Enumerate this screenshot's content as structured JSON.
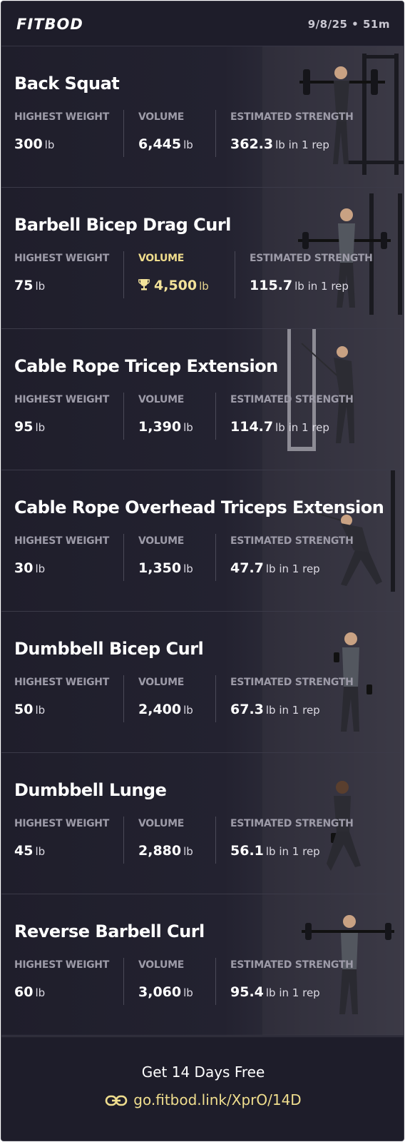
{
  "app": {
    "logo": "FITBOD",
    "meta": "9/8/25 • 51m"
  },
  "labels": {
    "highest_weight": "HIGHEST WEIGHT",
    "volume": "VOLUME",
    "estimated_strength": "ESTIMATED STRENGTH"
  },
  "exercises": [
    {
      "name": "Back Squat",
      "highest_weight": "300",
      "highest_weight_unit": "lb",
      "volume": "6,445",
      "volume_unit": "lb",
      "strength": "362.3",
      "strength_unit": "lb in 1 rep",
      "volume_record": false
    },
    {
      "name": "Barbell Bicep Drag Curl",
      "highest_weight": "75",
      "highest_weight_unit": "lb",
      "volume": "4,500",
      "volume_unit": "lb",
      "strength": "115.7",
      "strength_unit": "lb in 1 rep",
      "volume_record": true
    },
    {
      "name": "Cable Rope Tricep Extension",
      "highest_weight": "95",
      "highest_weight_unit": "lb",
      "volume": "1,390",
      "volume_unit": "lb",
      "strength": "114.7",
      "strength_unit": "lb in 1 rep",
      "volume_record": false
    },
    {
      "name": "Cable Rope Overhead Triceps Extension",
      "highest_weight": "30",
      "highest_weight_unit": "lb",
      "volume": "1,350",
      "volume_unit": "lb",
      "strength": "47.7",
      "strength_unit": "lb in 1 rep",
      "volume_record": false
    },
    {
      "name": "Dumbbell Bicep Curl",
      "highest_weight": "50",
      "highest_weight_unit": "lb",
      "volume": "2,400",
      "volume_unit": "lb",
      "strength": "67.3",
      "strength_unit": "lb in 1 rep",
      "volume_record": false
    },
    {
      "name": "Dumbbell Lunge",
      "highest_weight": "45",
      "highest_weight_unit": "lb",
      "volume": "2,880",
      "volume_unit": "lb",
      "strength": "56.1",
      "strength_unit": "lb in 1 rep",
      "volume_record": false
    },
    {
      "name": "Reverse Barbell Curl",
      "highest_weight": "60",
      "highest_weight_unit": "lb",
      "volume": "3,060",
      "volume_unit": "lb",
      "strength": "95.4",
      "strength_unit": "lb in 1 rep",
      "volume_record": false
    }
  ],
  "footer": {
    "cta": "Get 14 Days Free",
    "link": "go.fitbod.link/XprO/14D",
    "link_icon": "link-icon"
  },
  "colors": {
    "background": "#1e1d2a",
    "label": "#9d9ba8",
    "highlight": "#f0de8e",
    "text": "#ffffff"
  },
  "icons": {
    "volume_record": "trophy-icon"
  }
}
